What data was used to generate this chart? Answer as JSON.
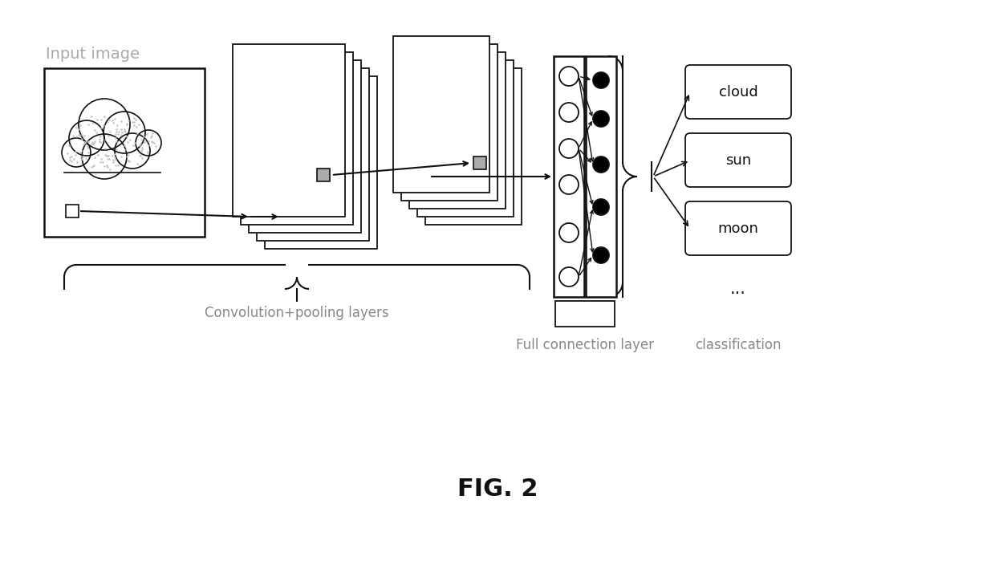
{
  "bg_color": "#ffffff",
  "title": "FIG. 2",
  "title_fontsize": 22,
  "input_label": "Input image",
  "conv_label": "Convolution+pooling layers",
  "fc_label": "Full connection layer",
  "class_label": "classification",
  "class_items": [
    "cloud",
    "sun",
    "moon"
  ],
  "text_color_input": "#aaaaaa",
  "text_color_dark": "#111111",
  "text_color_gray": "#888888"
}
